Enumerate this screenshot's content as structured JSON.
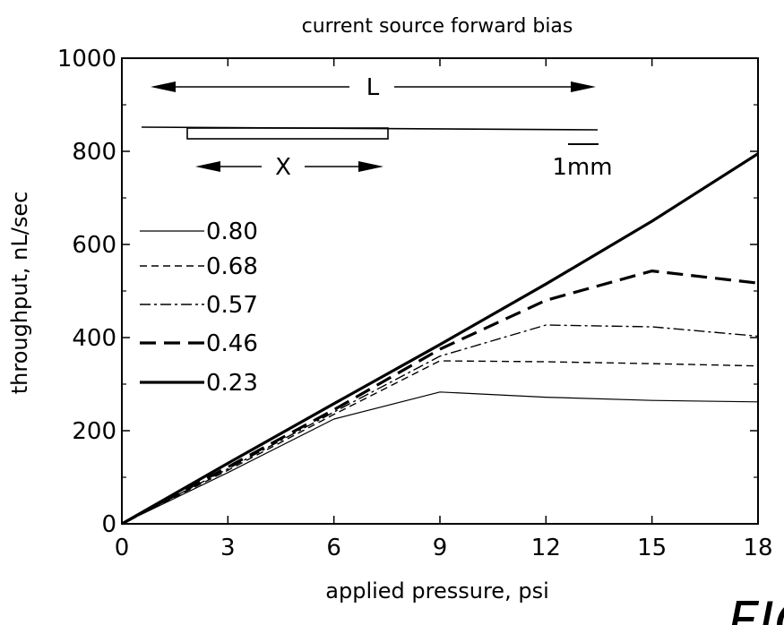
{
  "chart_data": {
    "type": "line",
    "title": "current source forward bias",
    "xlabel": "applied pressure, psi",
    "ylabel": "throughput, nL/sec",
    "xlim": [
      0,
      18
    ],
    "ylim": [
      0,
      1000
    ],
    "xticks": [
      "0",
      "3",
      "6",
      "9",
      "12",
      "15",
      "18"
    ],
    "yticks": [
      "0",
      "200",
      "400",
      "600",
      "800",
      "1000"
    ],
    "legend_position": "left",
    "grid": false,
    "series": [
      {
        "name": "0.80",
        "style": "thin-solid",
        "x": [
          0,
          3,
          6,
          9,
          12,
          15,
          18
        ],
        "y": [
          0,
          110,
          225,
          283,
          272,
          265,
          262
        ]
      },
      {
        "name": "0.68",
        "style": "dashed",
        "x": [
          0,
          3,
          6,
          9,
          12,
          15,
          18
        ],
        "y": [
          0,
          115,
          235,
          350,
          348,
          344,
          339
        ]
      },
      {
        "name": "0.57",
        "style": "dash-dot",
        "x": [
          0,
          3,
          6,
          9,
          12,
          15,
          18
        ],
        "y": [
          0,
          118,
          240,
          360,
          427,
          423,
          403
        ]
      },
      {
        "name": "0.46",
        "style": "thick-dashed",
        "x": [
          0,
          3,
          6,
          9,
          12,
          15,
          18
        ],
        "y": [
          0,
          122,
          245,
          375,
          480,
          543,
          517
        ]
      },
      {
        "name": "0.23",
        "style": "thick-solid",
        "x": [
          0,
          3,
          6,
          9,
          12,
          15,
          18
        ],
        "y": [
          0,
          130,
          258,
          385,
          515,
          650,
          795
        ]
      }
    ]
  },
  "diagram": {
    "length_label": "L",
    "segment_label": "X",
    "scale_label": "1mm"
  },
  "corner_fragment": "FIG"
}
